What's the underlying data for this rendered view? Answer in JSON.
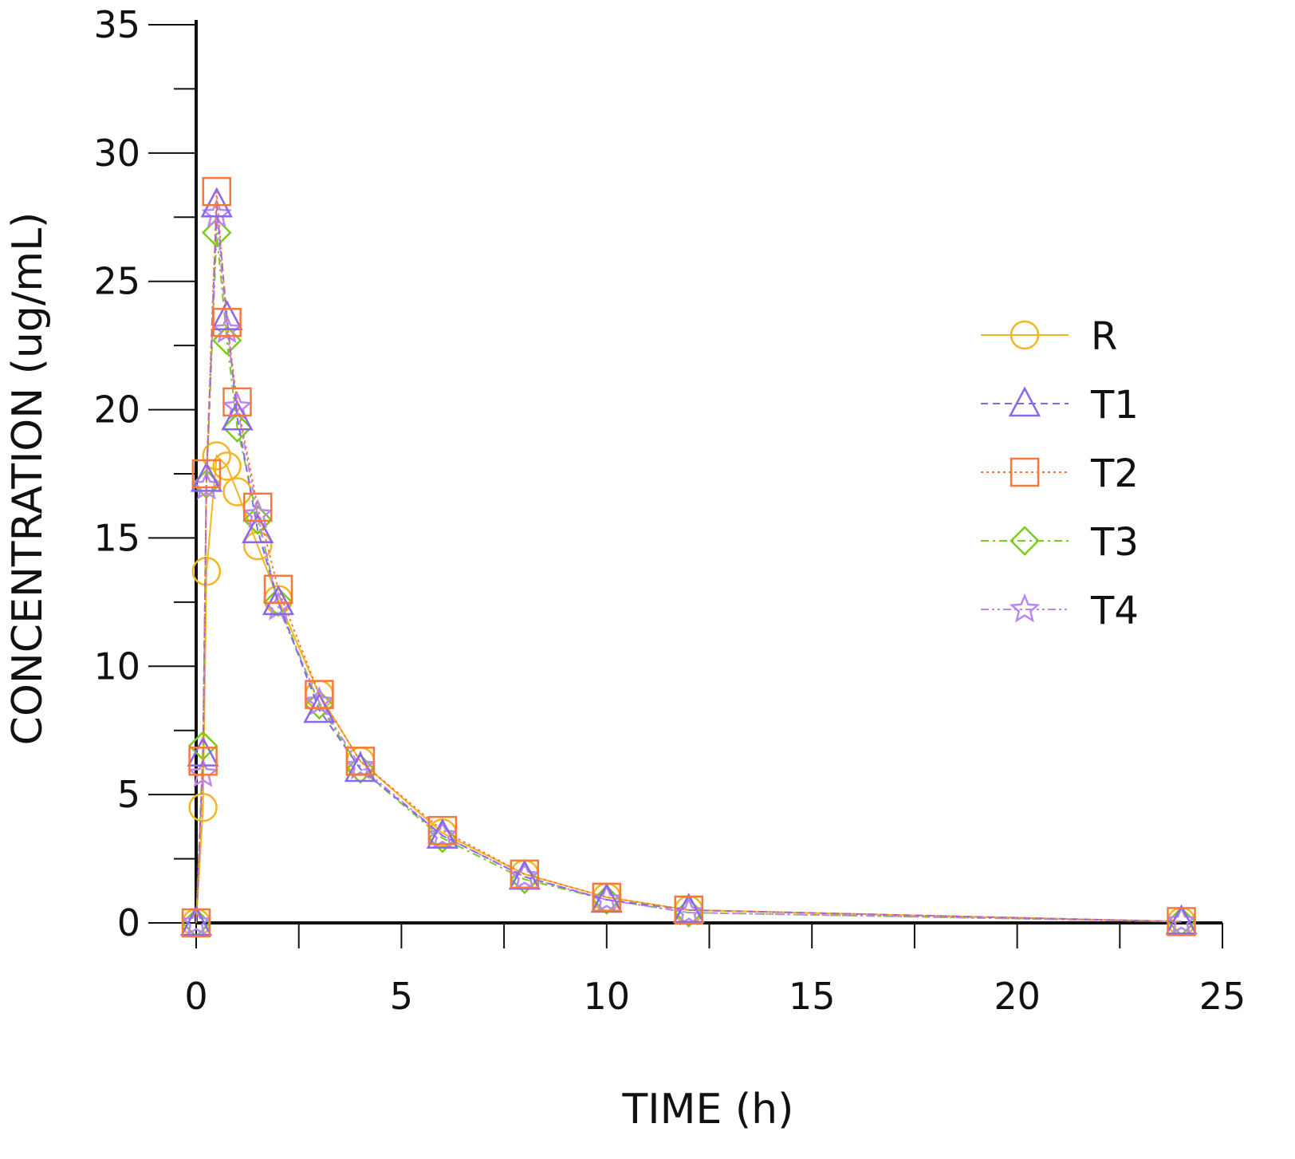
{
  "chart_data": {
    "type": "line",
    "title": "",
    "xlabel": "TIME (h)",
    "ylabel": "CONCENTRATION (ug/mL)",
    "xlim": [
      0,
      25
    ],
    "ylim": [
      0,
      35
    ],
    "xticks": [
      0,
      5,
      10,
      15,
      20,
      25
    ],
    "yticks": [
      0,
      5,
      10,
      15,
      20,
      25,
      30,
      35
    ],
    "x_tick_labels": [
      "0",
      "5",
      "10",
      "15",
      "20",
      "25"
    ],
    "y_tick_labels": [
      "0",
      "5",
      "10",
      "15",
      "20",
      "25",
      "30",
      "35"
    ],
    "grid": false,
    "legend_position": "right",
    "x": [
      0,
      0.167,
      0.25,
      0.5,
      0.75,
      1,
      1.5,
      2,
      3,
      4,
      6,
      8,
      10,
      12,
      24
    ],
    "series": [
      {
        "name": "R",
        "marker": "circle",
        "color": "#f5b520",
        "dash": "solid",
        "values": [
          0,
          4.5,
          13.7,
          18.2,
          17.8,
          16.8,
          14.7,
          12.6,
          8.9,
          6.3,
          3.5,
          1.9,
          1.0,
          0.5,
          0.05
        ]
      },
      {
        "name": "T1",
        "marker": "triangle",
        "color": "#8866ee",
        "dash": "dash",
        "values": [
          0,
          6.6,
          17.3,
          28.0,
          23.6,
          19.7,
          15.3,
          12.5,
          8.3,
          6.0,
          3.4,
          1.8,
          0.9,
          0.5,
          0.05
        ]
      },
      {
        "name": "T2",
        "marker": "square",
        "color": "#f57a3a",
        "dash": "dot",
        "values": [
          0,
          6.3,
          17.5,
          28.5,
          23.4,
          20.3,
          16.2,
          13.0,
          8.9,
          6.3,
          3.6,
          1.9,
          1.0,
          0.5,
          0.05
        ]
      },
      {
        "name": "T3",
        "marker": "diamond",
        "color": "#7acc1a",
        "dash": "dashdot",
        "values": [
          0,
          6.9,
          17.1,
          26.9,
          22.7,
          19.3,
          15.7,
          12.5,
          8.5,
          6.0,
          3.3,
          1.7,
          0.9,
          0.4,
          0.05
        ]
      },
      {
        "name": "T4",
        "marker": "star",
        "color": "#bb88f2",
        "dash": "dashdotdot",
        "values": [
          0,
          5.8,
          17.0,
          27.6,
          23.1,
          20.1,
          15.9,
          12.3,
          8.6,
          6.1,
          3.4,
          1.8,
          0.9,
          0.4,
          0.05
        ]
      }
    ]
  }
}
